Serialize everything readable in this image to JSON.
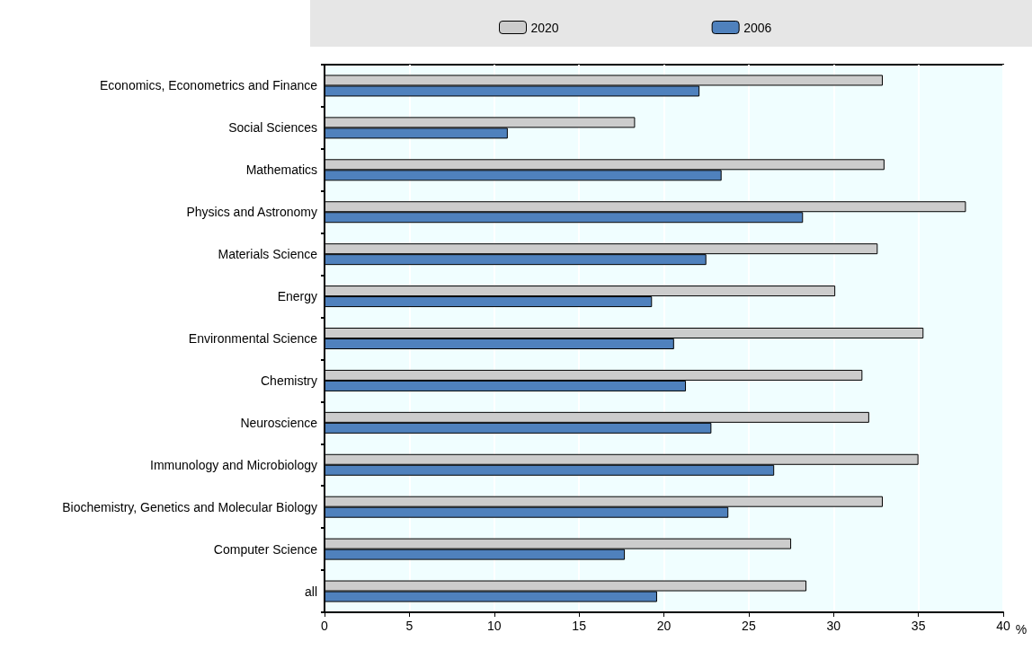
{
  "chart_data": {
    "type": "bar",
    "orientation": "horizontal",
    "xlabel": "%",
    "categories": [
      "Economics, Econometrics and Finance",
      "Social Sciences",
      "Mathematics",
      "Physics and Astronomy",
      "Materials Science",
      "Energy",
      "Environmental Science",
      "Chemistry",
      "Neuroscience",
      "Immunology and Microbiology",
      "Biochemistry, Genetics and Molecular Biology",
      "Computer Science",
      "all"
    ],
    "series": [
      {
        "name": "2020",
        "color": "#cccccc",
        "values": [
          32.9,
          18.3,
          33.0,
          37.8,
          32.6,
          30.1,
          35.3,
          31.7,
          32.1,
          35.0,
          32.9,
          27.5,
          28.4
        ]
      },
      {
        "name": "2006",
        "color": "#4f81bd",
        "values": [
          22.1,
          10.8,
          23.4,
          28.2,
          22.5,
          19.3,
          20.6,
          21.3,
          22.8,
          26.5,
          23.8,
          17.7,
          19.6
        ]
      }
    ],
    "xlim": [
      0,
      40
    ],
    "xticks": [
      0,
      5,
      10,
      15,
      20,
      25,
      30,
      35,
      40
    ],
    "grid": "x",
    "legend": "top"
  }
}
